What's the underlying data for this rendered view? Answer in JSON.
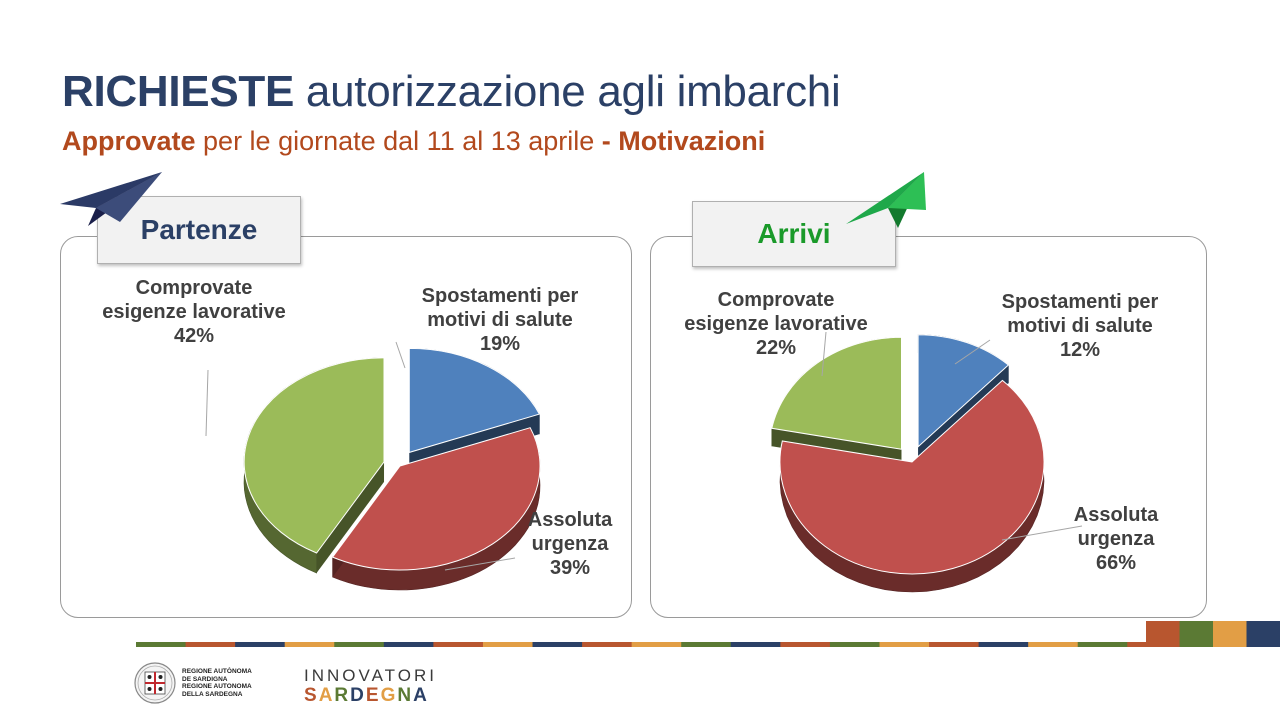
{
  "header": {
    "title_bold": "RICHIESTE",
    "title_rest": " autorizzazione agli imbarchi",
    "subtitle_bold1": "Approvate",
    "subtitle_mid": " per le giornate dal 11 al 13 aprile ",
    "subtitle_bold2": "- Motivazioni"
  },
  "chart_data": [
    {
      "type": "pie",
      "title": "Partenze",
      "categories": [
        "Spostamenti per motivi di salute",
        "Assoluta urgenza",
        "Comprovate esigenze lavorative"
      ],
      "values": [
        19,
        39,
        42
      ],
      "label_lines": [
        [
          "Spostamenti per",
          "motivi di salute",
          "19%"
        ],
        [
          "Assoluta",
          "urgenza",
          "39%"
        ],
        [
          "Comprovate",
          "esigenze lavorative",
          "42%"
        ]
      ],
      "colors": [
        "#4f81bd",
        "#c0504d",
        "#9bbb59"
      ],
      "exploded": [
        0,
        2
      ],
      "accent": "#2b4066"
    },
    {
      "type": "pie",
      "title": "Arrivi",
      "categories": [
        "Spostamenti per motivi di salute",
        "Assoluta urgenza",
        "Comprovate esigenze lavorative"
      ],
      "values": [
        12,
        66,
        22
      ],
      "label_lines": [
        [
          "Spostamenti per",
          "motivi di salute",
          "12%"
        ],
        [
          "Assoluta",
          "urgenza",
          "66%"
        ],
        [
          "Comprovate",
          "esigenze lavorative",
          "22%"
        ]
      ],
      "colors": [
        "#4f81bd",
        "#c0504d",
        "#9bbb59"
      ],
      "exploded": [
        0,
        2
      ],
      "accent": "#1a9a2a"
    }
  ],
  "footer": {
    "bar_colors": [
      "#5b7a34",
      "#b8562f",
      "#2b4066",
      "#e29e45",
      "#5b7a34",
      "#2b4066",
      "#b8562f",
      "#e29e45",
      "#2b4066",
      "#b8562f",
      "#e29e45",
      "#5b7a34",
      "#2b4066",
      "#b8562f",
      "#5b7a34",
      "#e29e45",
      "#b8562f",
      "#2b4066",
      "#e29e45",
      "#5b7a34",
      "#b8562f",
      "#2b4066",
      "#5b7a34"
    ],
    "square_colors": [
      "#b8562f",
      "#5b7a34",
      "#e29e45",
      "#2b4066"
    ],
    "region_lines": [
      "REGIONE AUTÒNOMA",
      "DE SARDIGNA",
      "REGIONE AUTONOMA",
      "DELLA SARDEGNA"
    ],
    "innovatori": "INNOVATORI",
    "sardegna_letters": [
      "S",
      "A",
      "R",
      "D",
      "E",
      "G",
      "N",
      "A"
    ],
    "sardegna_colors": [
      "#b8562f",
      "#e29e45",
      "#5b7a34",
      "#2b4066",
      "#b8562f",
      "#e29e45",
      "#5b7a34",
      "#2b4066"
    ]
  }
}
